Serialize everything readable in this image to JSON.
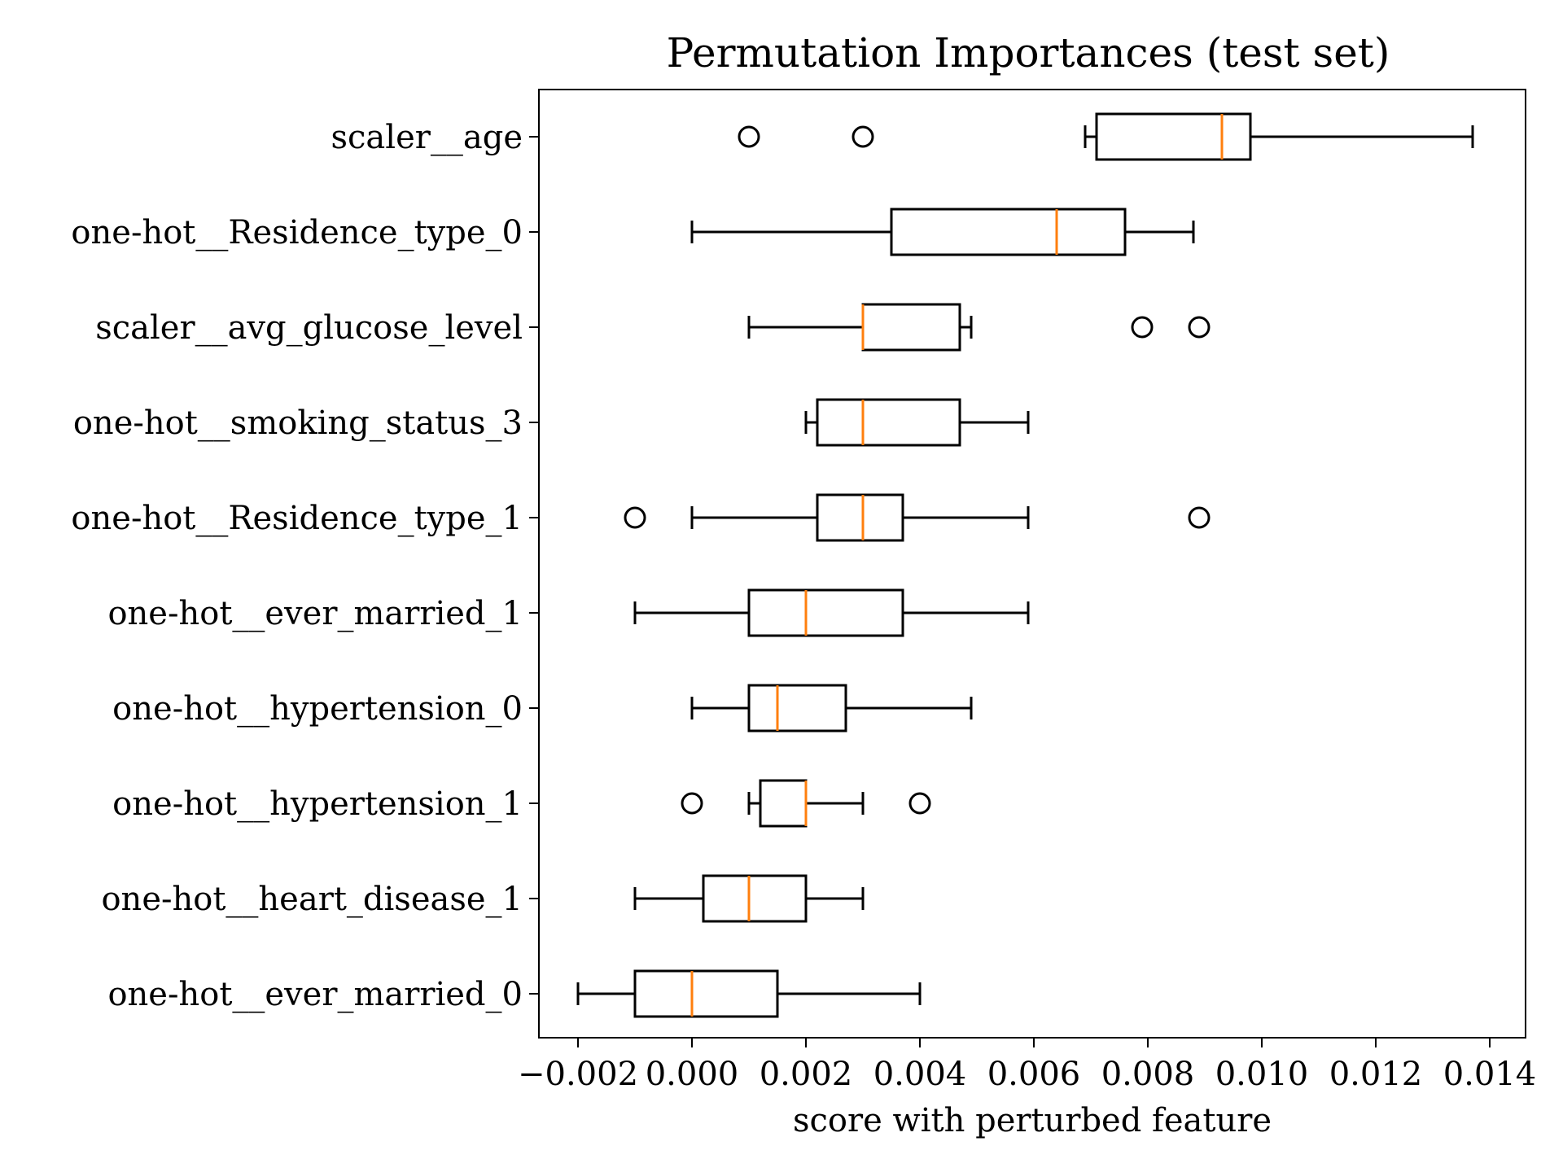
{
  "chart_data": {
    "type": "box",
    "orientation": "horizontal",
    "title": "Permutation Importances (test set)",
    "xlabel": "score with perturbed feature",
    "ylabel": "",
    "xlim": [
      -0.0027,
      0.0145
    ],
    "xticks": [
      -0.002,
      0.0,
      0.002,
      0.004,
      0.006,
      0.008,
      0.01,
      0.012,
      0.014
    ],
    "xtick_labels": [
      "−0.002",
      "0.000",
      "0.002",
      "0.004",
      "0.006",
      "0.008",
      "0.010",
      "0.012",
      "0.014"
    ],
    "grid": false,
    "colors": {
      "box": "#000000",
      "median": "#ff7f0e"
    },
    "categories": [
      "scaler__age",
      "one-hot__Residence_type_0",
      "scaler__avg_glucose_level",
      "one-hot__smoking_status_3",
      "one-hot__Residence_type_1",
      "one-hot__ever_married_1",
      "one-hot__hypertension_0",
      "one-hot__hypertension_1",
      "one-hot__heart_disease_1",
      "one-hot__ever_married_0"
    ],
    "boxes": [
      {
        "whisker_low": 0.0069,
        "q1": 0.0071,
        "median": 0.0093,
        "q3": 0.0098,
        "whisker_high": 0.0137,
        "outliers": [
          0.001,
          0.003
        ]
      },
      {
        "whisker_low": 0.0,
        "q1": 0.0035,
        "median": 0.0064,
        "q3": 0.0076,
        "whisker_high": 0.0088,
        "outliers": []
      },
      {
        "whisker_low": 0.001,
        "q1": 0.003,
        "median": 0.003,
        "q3": 0.0047,
        "whisker_high": 0.0049,
        "outliers": [
          0.0079,
          0.0089
        ]
      },
      {
        "whisker_low": 0.002,
        "q1": 0.0022,
        "median": 0.003,
        "q3": 0.0047,
        "whisker_high": 0.0059,
        "outliers": []
      },
      {
        "whisker_low": 0.0,
        "q1": 0.0022,
        "median": 0.003,
        "q3": 0.0037,
        "whisker_high": 0.0059,
        "outliers": [
          -0.001,
          0.0089
        ]
      },
      {
        "whisker_low": -0.001,
        "q1": 0.001,
        "median": 0.002,
        "q3": 0.0037,
        "whisker_high": 0.0059,
        "outliers": []
      },
      {
        "whisker_low": 0.0,
        "q1": 0.001,
        "median": 0.0015,
        "q3": 0.0027,
        "whisker_high": 0.0049,
        "outliers": []
      },
      {
        "whisker_low": 0.001,
        "q1": 0.0012,
        "median": 0.002,
        "q3": 0.002,
        "whisker_high": 0.003,
        "outliers": [
          0.0,
          0.004
        ]
      },
      {
        "whisker_low": -0.001,
        "q1": 0.0002,
        "median": 0.001,
        "q3": 0.002,
        "whisker_high": 0.003,
        "outliers": []
      },
      {
        "whisker_low": -0.002,
        "q1": -0.001,
        "median": 0.0,
        "q3": 0.0015,
        "whisker_high": 0.004,
        "outliers": []
      }
    ]
  }
}
